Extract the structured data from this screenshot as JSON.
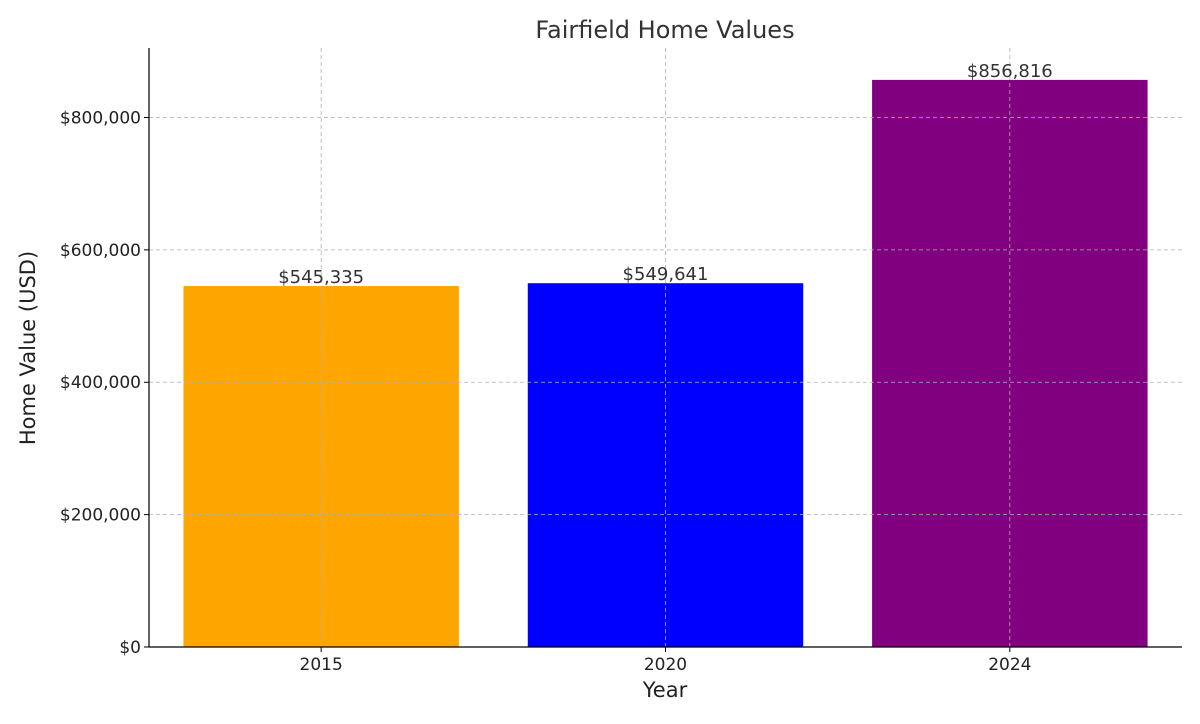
{
  "chart_data": {
    "type": "bar",
    "title": "Fairfield Home Values",
    "xlabel": "Year",
    "ylabel": "Home Value (USD)",
    "categories": [
      "2015",
      "2020",
      "2024"
    ],
    "values": [
      545335,
      549641,
      856816
    ],
    "value_labels": [
      "$545,335",
      "$549,641",
      "$856,816"
    ],
    "colors": [
      "#FFA500",
      "#0000FF",
      "#800080"
    ],
    "ylim": [
      0,
      905000
    ],
    "yticks": [
      0,
      200000,
      400000,
      600000,
      800000
    ],
    "ytick_labels": [
      "$0",
      "$200,000",
      "$400,000",
      "$600,000",
      "$800,000"
    ],
    "grid": true,
    "legend": "none"
  }
}
